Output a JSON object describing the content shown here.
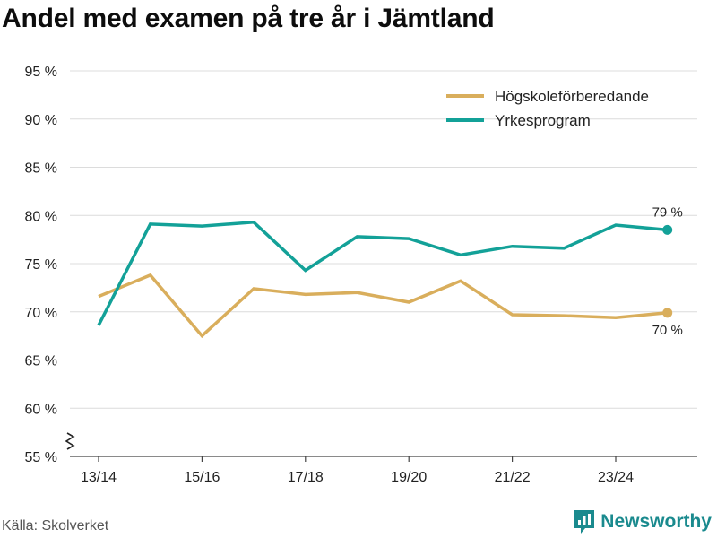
{
  "title": "Andel med examen på tre år i Jämtland",
  "source": "Källa: Skolverket",
  "brand": {
    "name": "Newsworthy",
    "icon": "newsworthy-logo-icon",
    "color": "#1a8a8e"
  },
  "chart_data": {
    "type": "line",
    "ylim": [
      55,
      95
    ],
    "y_ticks": [
      55,
      60,
      65,
      70,
      75,
      80,
      85,
      90,
      95
    ],
    "y_tick_labels": [
      "55 %",
      "60 %",
      "65 %",
      "70 %",
      "75 %",
      "80 %",
      "85 %",
      "90 %",
      "95 %"
    ],
    "y_axis_break": true,
    "x": [
      "13/14",
      "14/15",
      "15/16",
      "16/17",
      "17/18",
      "18/19",
      "19/20",
      "20/21",
      "21/22",
      "22/23",
      "23/24",
      "24/25"
    ],
    "x_tick_labels": [
      "13/14",
      "15/16",
      "17/18",
      "19/20",
      "21/22",
      "23/24"
    ],
    "legend_position": "top-right",
    "grid": true,
    "series": [
      {
        "name": "Högskoleförberedande",
        "color": "#d9ae5c",
        "values": [
          71.6,
          73.8,
          67.5,
          72.4,
          71.8,
          72.0,
          71.0,
          73.2,
          69.7,
          69.6,
          69.4,
          69.9
        ],
        "end_label": "70 %"
      },
      {
        "name": "Yrkesprogram",
        "color": "#13a198",
        "values": [
          68.6,
          79.1,
          78.9,
          79.3,
          74.3,
          77.8,
          77.6,
          75.9,
          76.8,
          76.6,
          79.0,
          78.5
        ],
        "end_label": "79 %"
      }
    ]
  }
}
